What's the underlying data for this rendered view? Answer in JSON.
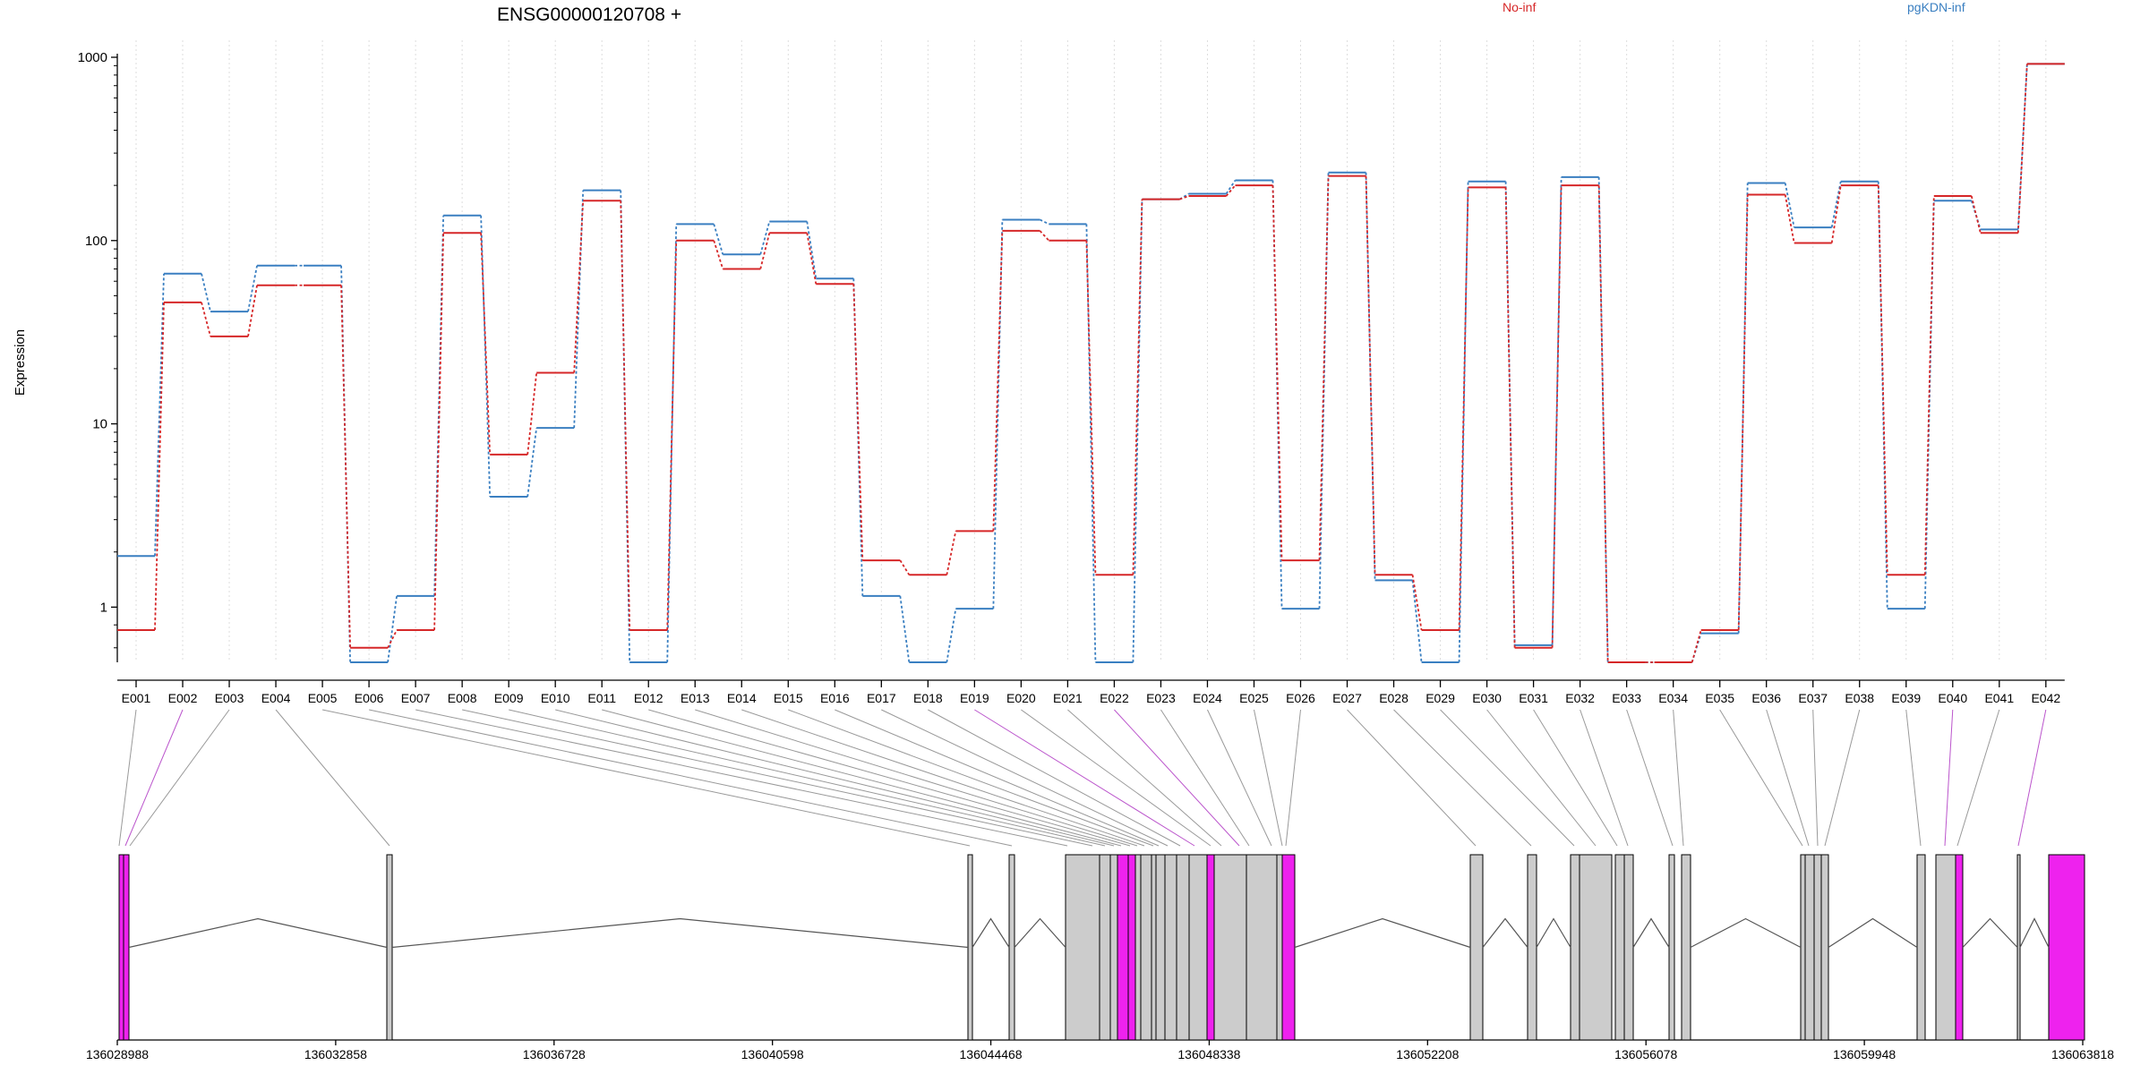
{
  "chart_data": {
    "type": "line",
    "title": "ENSG00000120708 +",
    "ylabel": "Expression",
    "xlabel": "",
    "y_scale": "log",
    "ylim": [
      0.5,
      1000
    ],
    "y_ticks": [
      "1",
      "10",
      "100",
      "1000"
    ],
    "grid": "vertical dotted lines at exon centers",
    "legend": "top, inline labels",
    "categories": [
      "E001",
      "E002",
      "E003",
      "E004",
      "E005",
      "E006",
      "E007",
      "E008",
      "E009",
      "E010",
      "E011",
      "E012",
      "E013",
      "E014",
      "E015",
      "E016",
      "E017",
      "E018",
      "E019",
      "E020",
      "E021",
      "E022",
      "E023",
      "E024",
      "E025",
      "E026",
      "E027",
      "E028",
      "E029",
      "E030",
      "E031",
      "E032",
      "E033",
      "E034",
      "E035",
      "E036",
      "E037",
      "E038",
      "E039",
      "E040",
      "E041",
      "E042"
    ],
    "series": [
      {
        "name": "No-inf",
        "color": "#d62728",
        "values": [
          0.75,
          46,
          30,
          57,
          57,
          0.6,
          0.75,
          110,
          6.8,
          19,
          165,
          0.75,
          100,
          70,
          110,
          58,
          1.8,
          1.5,
          2.6,
          113,
          100,
          1.5,
          168,
          175,
          200,
          1.8,
          225,
          1.5,
          0.75,
          195,
          0.6,
          200,
          0.5,
          0.5,
          0.75,
          178,
          97,
          200,
          1.5,
          175,
          110,
          920
        ]
      },
      {
        "name": "pgKDN-inf",
        "color": "#3a7fc1",
        "values": [
          1.9,
          66,
          41,
          73,
          73,
          0.5,
          1.15,
          137,
          4,
          9.5,
          188,
          0.5,
          123,
          84,
          127,
          62,
          1.15,
          0.5,
          0.98,
          130,
          123,
          0.5,
          168,
          180,
          213,
          0.98,
          235,
          1.4,
          0.5,
          210,
          0.62,
          222,
          0.5,
          0.5,
          0.72,
          206,
          118,
          210,
          0.98,
          165,
          115,
          920
        ]
      }
    ],
    "gene_model": {
      "x_ticks": [
        "136028988",
        "136032858",
        "136036728",
        "136040598",
        "136044468",
        "136048338",
        "136052208",
        "136056078",
        "136059948",
        "136063818"
      ],
      "highlight_color": "#ee22ee",
      "exon_fill": "#cccccc"
    }
  }
}
